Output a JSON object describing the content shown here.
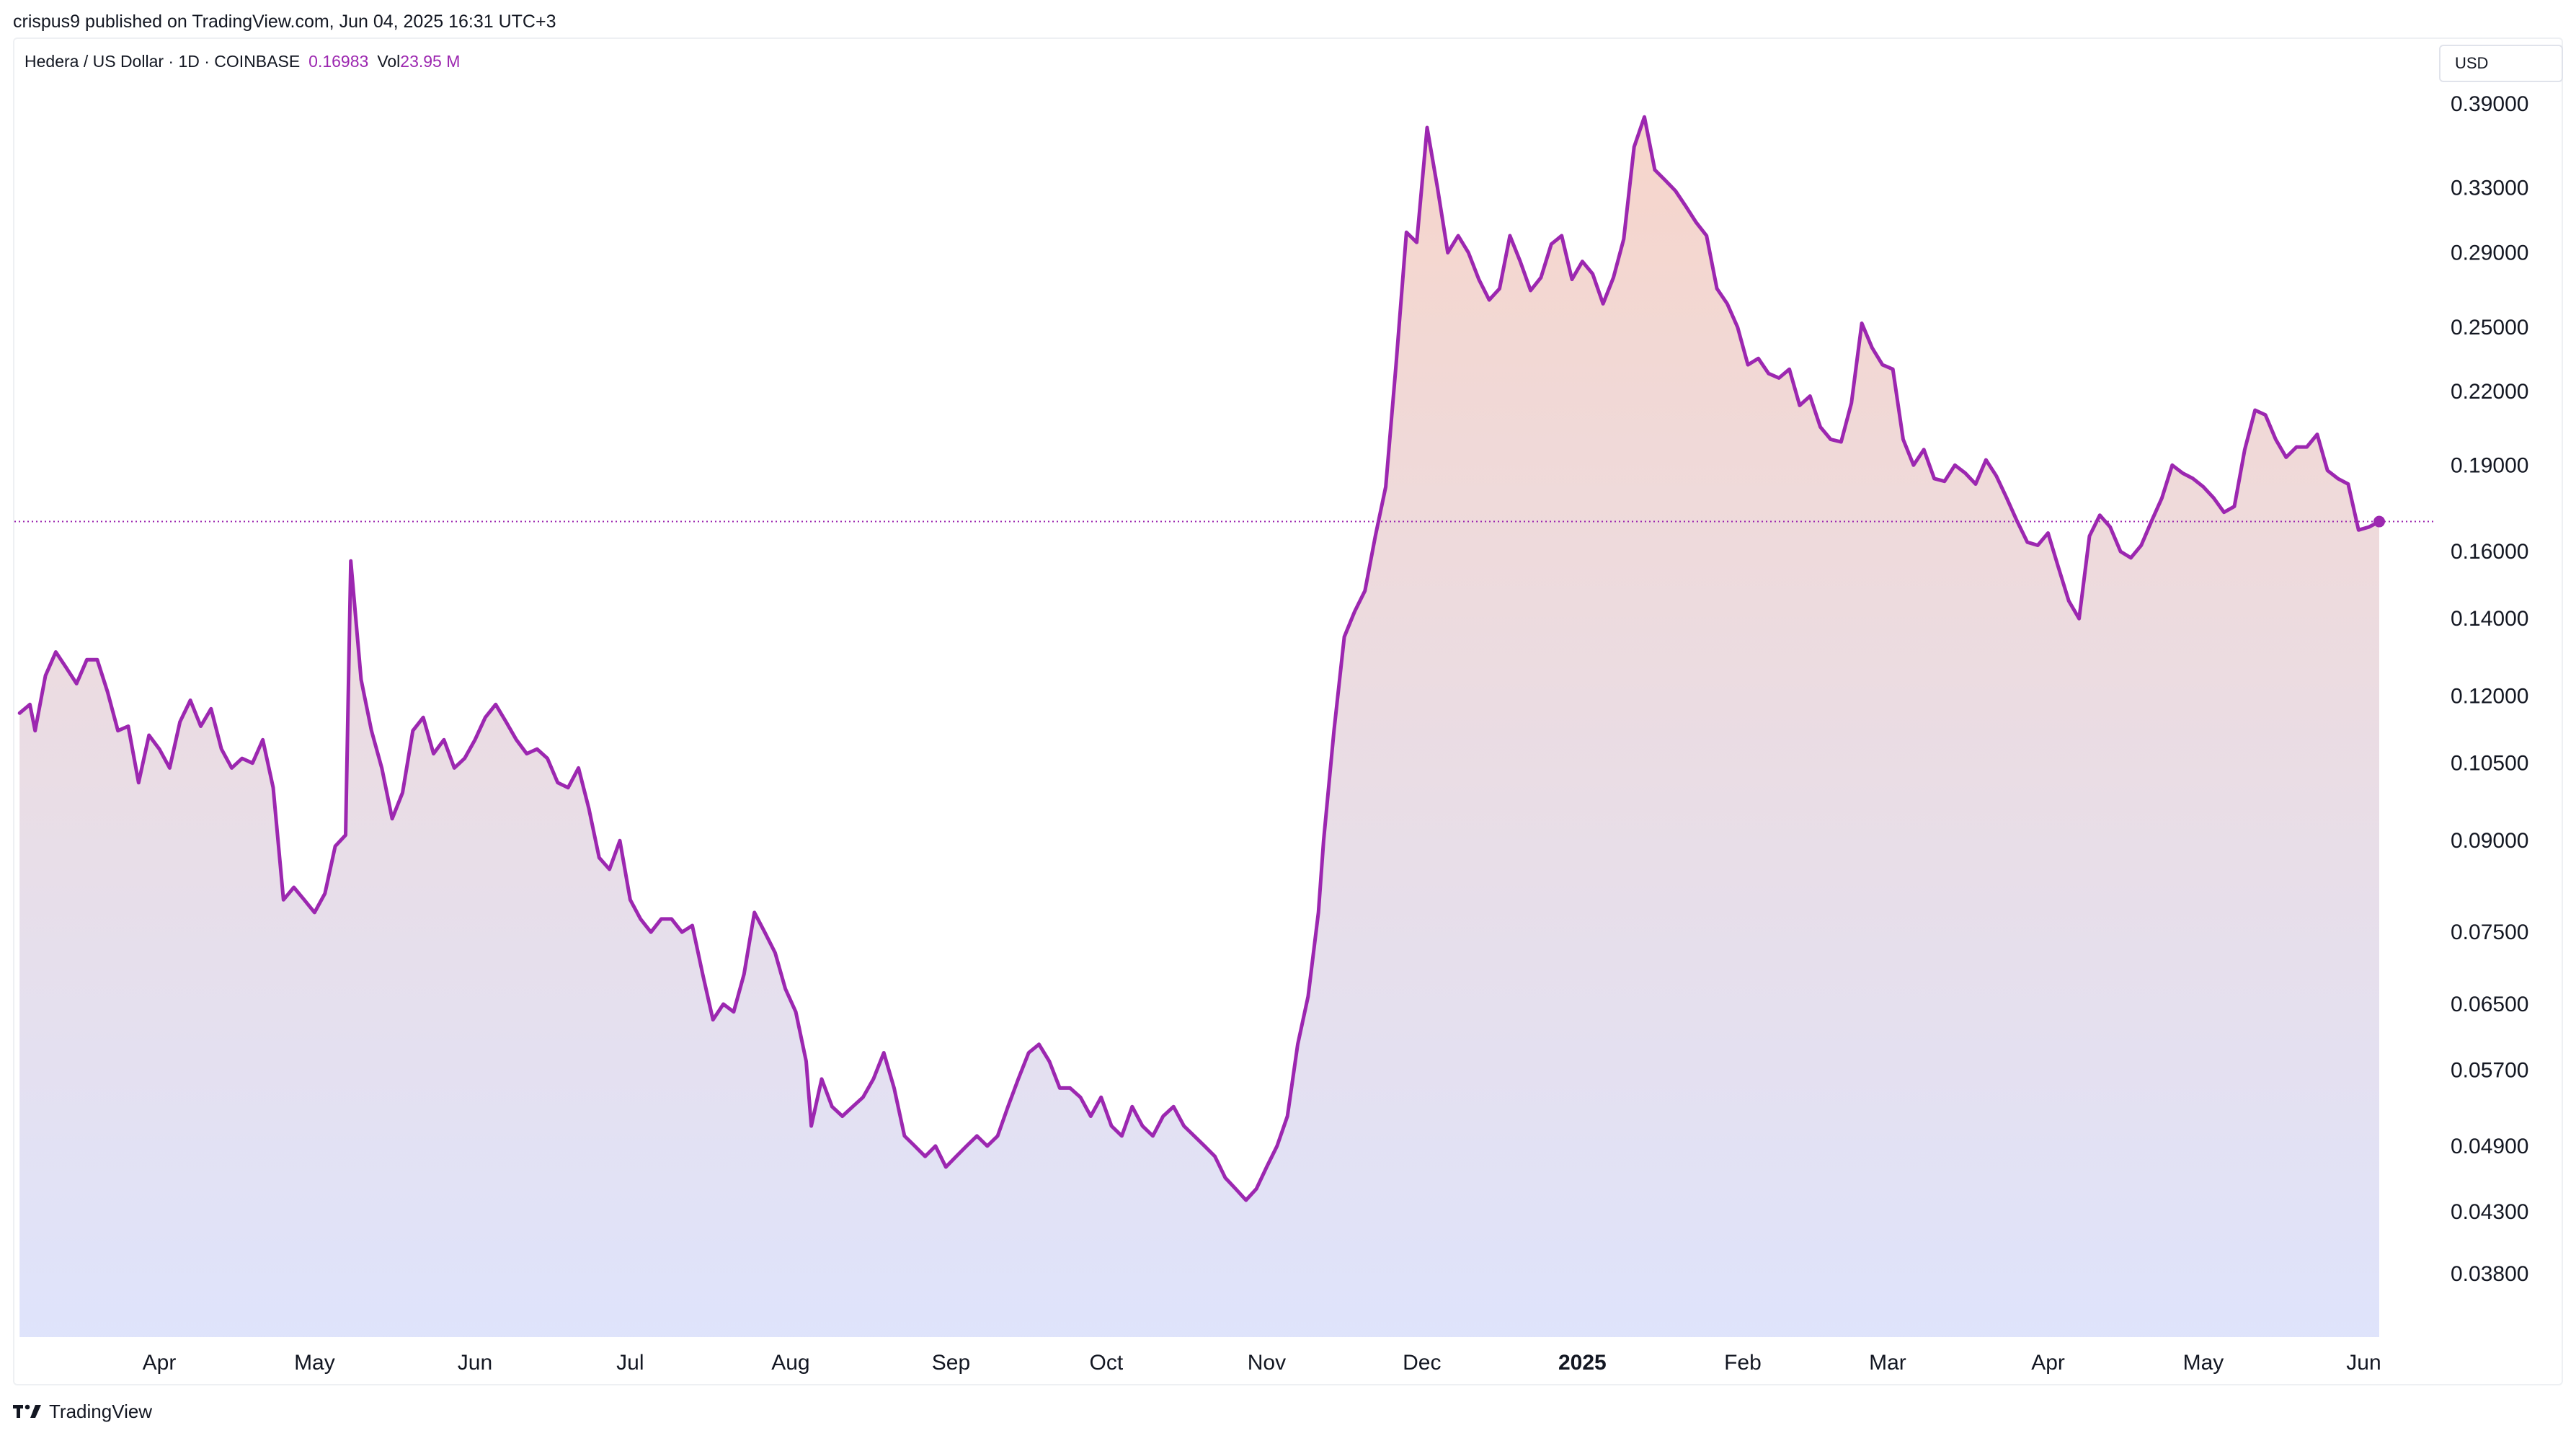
{
  "header": {
    "publish_text": "crispus9 published on TradingView.com, Jun 04, 2025 16:31 UTC+3"
  },
  "legend": {
    "symbol_text": "Hedera / US Dollar · 1D · COINBASE",
    "last_price": "0.16983",
    "vol_label": "Vol",
    "vol_value": "23.95 M"
  },
  "price_scale": {
    "currency": "USD"
  },
  "footer": {
    "brand_text": "TradingView"
  },
  "colors": {
    "line": "#9c27b0",
    "area_top": "#f6d3c8",
    "area_bottom": "#dde2fb",
    "axis_text": "#131722",
    "last_price_line": "#9c27b0"
  },
  "chart_data": {
    "type": "area",
    "title": "Hedera / US Dollar · 1D · COINBASE",
    "scale": "log",
    "ylim": [
      0.0335,
      0.44
    ],
    "xlim": [
      "2024-03-04",
      "2025-06-15"
    ],
    "y_ticks": [
      "0.39000",
      "0.33000",
      "0.29000",
      "0.25000",
      "0.22000",
      "0.19000",
      "0.16000",
      "0.14000",
      "0.12000",
      "0.10500",
      "0.09000",
      "0.07500",
      "0.06500",
      "0.05700",
      "0.04900",
      "0.04300",
      "0.03800"
    ],
    "x_ticks": [
      {
        "date": "2024-04-01",
        "label": "Apr"
      },
      {
        "date": "2024-05-01",
        "label": "May"
      },
      {
        "date": "2024-06-01",
        "label": "Jun"
      },
      {
        "date": "2024-07-01",
        "label": "Jul"
      },
      {
        "date": "2024-08-01",
        "label": "Aug"
      },
      {
        "date": "2024-09-01",
        "label": "Sep"
      },
      {
        "date": "2024-10-01",
        "label": "Oct"
      },
      {
        "date": "2024-11-01",
        "label": "Nov"
      },
      {
        "date": "2024-12-01",
        "label": "Dec"
      },
      {
        "date": "2025-01-01",
        "label": "2025"
      },
      {
        "date": "2025-02-01",
        "label": "Feb"
      },
      {
        "date": "2025-03-01",
        "label": "Mar"
      },
      {
        "date": "2025-04-01",
        "label": "Apr"
      },
      {
        "date": "2025-05-01",
        "label": "May"
      },
      {
        "date": "2025-06-01",
        "label": "Jun"
      }
    ],
    "last_value": 0.16983,
    "grid": false,
    "series": [
      {
        "points": [
          [
            "2024-03-05",
            0.116
          ],
          [
            "2024-03-07",
            0.118
          ],
          [
            "2024-03-08",
            0.112
          ],
          [
            "2024-03-10",
            0.125
          ],
          [
            "2024-03-12",
            0.131
          ],
          [
            "2024-03-14",
            0.127
          ],
          [
            "2024-03-16",
            0.123
          ],
          [
            "2024-03-18",
            0.129
          ],
          [
            "2024-03-20",
            0.129
          ],
          [
            "2024-03-22",
            0.121
          ],
          [
            "2024-03-24",
            0.112
          ],
          [
            "2024-03-26",
            0.113
          ],
          [
            "2024-03-28",
            0.101
          ],
          [
            "2024-03-30",
            0.111
          ],
          [
            "2024-04-01",
            0.108
          ],
          [
            "2024-04-03",
            0.104
          ],
          [
            "2024-04-05",
            0.114
          ],
          [
            "2024-04-07",
            0.119
          ],
          [
            "2024-04-09",
            0.113
          ],
          [
            "2024-04-11",
            0.117
          ],
          [
            "2024-04-13",
            0.108
          ],
          [
            "2024-04-15",
            0.104
          ],
          [
            "2024-04-17",
            0.106
          ],
          [
            "2024-04-19",
            0.105
          ],
          [
            "2024-04-21",
            0.11
          ],
          [
            "2024-04-23",
            0.1
          ],
          [
            "2024-04-25",
            0.08
          ],
          [
            "2024-04-27",
            0.082
          ],
          [
            "2024-04-29",
            0.08
          ],
          [
            "2024-05-01",
            0.078
          ],
          [
            "2024-05-03",
            0.081
          ],
          [
            "2024-05-05",
            0.089
          ],
          [
            "2024-05-07",
            0.091
          ],
          [
            "2024-05-08",
            0.157
          ],
          [
            "2024-05-10",
            0.124
          ],
          [
            "2024-05-12",
            0.112
          ],
          [
            "2024-05-14",
            0.104
          ],
          [
            "2024-05-16",
            0.094
          ],
          [
            "2024-05-18",
            0.099
          ],
          [
            "2024-05-20",
            0.112
          ],
          [
            "2024-05-22",
            0.115
          ],
          [
            "2024-05-24",
            0.107
          ],
          [
            "2024-05-26",
            0.11
          ],
          [
            "2024-05-28",
            0.104
          ],
          [
            "2024-05-30",
            0.106
          ],
          [
            "2024-06-01",
            0.11
          ],
          [
            "2024-06-03",
            0.115
          ],
          [
            "2024-06-05",
            0.118
          ],
          [
            "2024-06-07",
            0.114
          ],
          [
            "2024-06-09",
            0.11
          ],
          [
            "2024-06-11",
            0.107
          ],
          [
            "2024-06-13",
            0.108
          ],
          [
            "2024-06-15",
            0.106
          ],
          [
            "2024-06-17",
            0.101
          ],
          [
            "2024-06-19",
            0.1
          ],
          [
            "2024-06-21",
            0.104
          ],
          [
            "2024-06-23",
            0.096
          ],
          [
            "2024-06-25",
            0.087
          ],
          [
            "2024-06-27",
            0.085
          ],
          [
            "2024-06-29",
            0.09
          ],
          [
            "2024-07-01",
            0.08
          ],
          [
            "2024-07-03",
            0.077
          ],
          [
            "2024-07-05",
            0.075
          ],
          [
            "2024-07-07",
            0.077
          ],
          [
            "2024-07-09",
            0.077
          ],
          [
            "2024-07-11",
            0.075
          ],
          [
            "2024-07-13",
            0.076
          ],
          [
            "2024-07-15",
            0.069
          ],
          [
            "2024-07-17",
            0.063
          ],
          [
            "2024-07-19",
            0.065
          ],
          [
            "2024-07-21",
            0.064
          ],
          [
            "2024-07-23",
            0.069
          ],
          [
            "2024-07-25",
            0.078
          ],
          [
            "2024-07-27",
            0.075
          ],
          [
            "2024-07-29",
            0.072
          ],
          [
            "2024-07-31",
            0.067
          ],
          [
            "2024-08-02",
            0.064
          ],
          [
            "2024-08-04",
            0.058
          ],
          [
            "2024-08-05",
            0.051
          ],
          [
            "2024-08-07",
            0.056
          ],
          [
            "2024-08-09",
            0.053
          ],
          [
            "2024-08-11",
            0.052
          ],
          [
            "2024-08-13",
            0.053
          ],
          [
            "2024-08-15",
            0.054
          ],
          [
            "2024-08-17",
            0.056
          ],
          [
            "2024-08-19",
            0.059
          ],
          [
            "2024-08-21",
            0.055
          ],
          [
            "2024-08-23",
            0.05
          ],
          [
            "2024-08-25",
            0.049
          ],
          [
            "2024-08-27",
            0.048
          ],
          [
            "2024-08-29",
            0.049
          ],
          [
            "2024-08-31",
            0.047
          ],
          [
            "2024-09-02",
            0.048
          ],
          [
            "2024-09-04",
            0.049
          ],
          [
            "2024-09-06",
            0.05
          ],
          [
            "2024-09-08",
            0.049
          ],
          [
            "2024-09-10",
            0.05
          ],
          [
            "2024-09-12",
            0.053
          ],
          [
            "2024-09-14",
            0.056
          ],
          [
            "2024-09-16",
            0.059
          ],
          [
            "2024-09-18",
            0.06
          ],
          [
            "2024-09-20",
            0.058
          ],
          [
            "2024-09-22",
            0.055
          ],
          [
            "2024-09-24",
            0.055
          ],
          [
            "2024-09-26",
            0.054
          ],
          [
            "2024-09-28",
            0.052
          ],
          [
            "2024-09-30",
            0.054
          ],
          [
            "2024-10-02",
            0.051
          ],
          [
            "2024-10-04",
            0.05
          ],
          [
            "2024-10-06",
            0.053
          ],
          [
            "2024-10-08",
            0.051
          ],
          [
            "2024-10-10",
            0.05
          ],
          [
            "2024-10-12",
            0.052
          ],
          [
            "2024-10-14",
            0.053
          ],
          [
            "2024-10-16",
            0.051
          ],
          [
            "2024-10-18",
            0.05
          ],
          [
            "2024-10-20",
            0.049
          ],
          [
            "2024-10-22",
            0.048
          ],
          [
            "2024-10-24",
            0.046
          ],
          [
            "2024-10-26",
            0.045
          ],
          [
            "2024-10-28",
            0.044
          ],
          [
            "2024-10-30",
            0.045
          ],
          [
            "2024-11-01",
            0.047
          ],
          [
            "2024-11-03",
            0.049
          ],
          [
            "2024-11-05",
            0.052
          ],
          [
            "2024-11-07",
            0.06
          ],
          [
            "2024-11-09",
            0.066
          ],
          [
            "2024-11-11",
            0.078
          ],
          [
            "2024-11-12",
            0.09
          ],
          [
            "2024-11-14",
            0.112
          ],
          [
            "2024-11-16",
            0.135
          ],
          [
            "2024-11-18",
            0.142
          ],
          [
            "2024-11-20",
            0.148
          ],
          [
            "2024-11-22",
            0.165
          ],
          [
            "2024-11-24",
            0.182
          ],
          [
            "2024-11-26",
            0.232
          ],
          [
            "2024-11-28",
            0.302
          ],
          [
            "2024-11-30",
            0.296
          ],
          [
            "2024-12-02",
            0.372
          ],
          [
            "2024-12-04",
            0.33
          ],
          [
            "2024-12-06",
            0.29
          ],
          [
            "2024-12-08",
            0.3
          ],
          [
            "2024-12-10",
            0.29
          ],
          [
            "2024-12-12",
            0.275
          ],
          [
            "2024-12-14",
            0.264
          ],
          [
            "2024-12-16",
            0.27
          ],
          [
            "2024-12-18",
            0.3
          ],
          [
            "2024-12-20",
            0.285
          ],
          [
            "2024-12-22",
            0.269
          ],
          [
            "2024-12-24",
            0.276
          ],
          [
            "2024-12-26",
            0.295
          ],
          [
            "2024-12-28",
            0.3
          ],
          [
            "2024-12-30",
            0.275
          ],
          [
            "2025-01-01",
            0.285
          ],
          [
            "2025-01-03",
            0.278
          ],
          [
            "2025-01-05",
            0.262
          ],
          [
            "2025-01-07",
            0.276
          ],
          [
            "2025-01-09",
            0.298
          ],
          [
            "2025-01-11",
            0.358
          ],
          [
            "2025-01-13",
            0.38
          ],
          [
            "2025-01-15",
            0.342
          ],
          [
            "2025-01-17",
            0.335
          ],
          [
            "2025-01-19",
            0.328
          ],
          [
            "2025-01-21",
            0.318
          ],
          [
            "2025-01-23",
            0.308
          ],
          [
            "2025-01-25",
            0.3
          ],
          [
            "2025-01-27",
            0.27
          ],
          [
            "2025-01-29",
            0.262
          ],
          [
            "2025-01-31",
            0.25
          ],
          [
            "2025-02-02",
            0.232
          ],
          [
            "2025-02-04",
            0.235
          ],
          [
            "2025-02-06",
            0.228
          ],
          [
            "2025-02-08",
            0.226
          ],
          [
            "2025-02-10",
            0.23
          ],
          [
            "2025-02-12",
            0.214
          ],
          [
            "2025-02-14",
            0.218
          ],
          [
            "2025-02-16",
            0.205
          ],
          [
            "2025-02-18",
            0.2
          ],
          [
            "2025-02-20",
            0.199
          ],
          [
            "2025-02-22",
            0.215
          ],
          [
            "2025-02-24",
            0.252
          ],
          [
            "2025-02-26",
            0.24
          ],
          [
            "2025-02-28",
            0.232
          ],
          [
            "2025-03-02",
            0.23
          ],
          [
            "2025-03-04",
            0.2
          ],
          [
            "2025-03-06",
            0.19
          ],
          [
            "2025-03-08",
            0.196
          ],
          [
            "2025-03-10",
            0.185
          ],
          [
            "2025-03-12",
            0.184
          ],
          [
            "2025-03-14",
            0.19
          ],
          [
            "2025-03-16",
            0.187
          ],
          [
            "2025-03-18",
            0.183
          ],
          [
            "2025-03-20",
            0.192
          ],
          [
            "2025-03-22",
            0.186
          ],
          [
            "2025-03-24",
            0.178
          ],
          [
            "2025-03-26",
            0.17
          ],
          [
            "2025-03-28",
            0.163
          ],
          [
            "2025-03-30",
            0.162
          ],
          [
            "2025-04-01",
            0.166
          ],
          [
            "2025-04-03",
            0.155
          ],
          [
            "2025-04-05",
            0.145
          ],
          [
            "2025-04-07",
            0.14
          ],
          [
            "2025-04-09",
            0.165
          ],
          [
            "2025-04-11",
            0.172
          ],
          [
            "2025-04-13",
            0.168
          ],
          [
            "2025-04-15",
            0.16
          ],
          [
            "2025-04-17",
            0.158
          ],
          [
            "2025-04-19",
            0.162
          ],
          [
            "2025-04-21",
            0.17
          ],
          [
            "2025-04-23",
            0.178
          ],
          [
            "2025-04-25",
            0.19
          ],
          [
            "2025-04-27",
            0.187
          ],
          [
            "2025-04-29",
            0.185
          ],
          [
            "2025-05-01",
            0.182
          ],
          [
            "2025-05-03",
            0.178
          ],
          [
            "2025-05-05",
            0.173
          ],
          [
            "2025-05-07",
            0.175
          ],
          [
            "2025-05-09",
            0.196
          ],
          [
            "2025-05-11",
            0.212
          ],
          [
            "2025-05-13",
            0.21
          ],
          [
            "2025-05-15",
            0.2
          ],
          [
            "2025-05-17",
            0.193
          ],
          [
            "2025-05-19",
            0.197
          ],
          [
            "2025-05-21",
            0.197
          ],
          [
            "2025-05-23",
            0.202
          ],
          [
            "2025-05-25",
            0.188
          ],
          [
            "2025-05-27",
            0.185
          ],
          [
            "2025-05-29",
            0.183
          ],
          [
            "2025-05-31",
            0.167
          ],
          [
            "2025-06-02",
            0.168
          ],
          [
            "2025-06-04",
            0.16983
          ]
        ]
      }
    ]
  }
}
